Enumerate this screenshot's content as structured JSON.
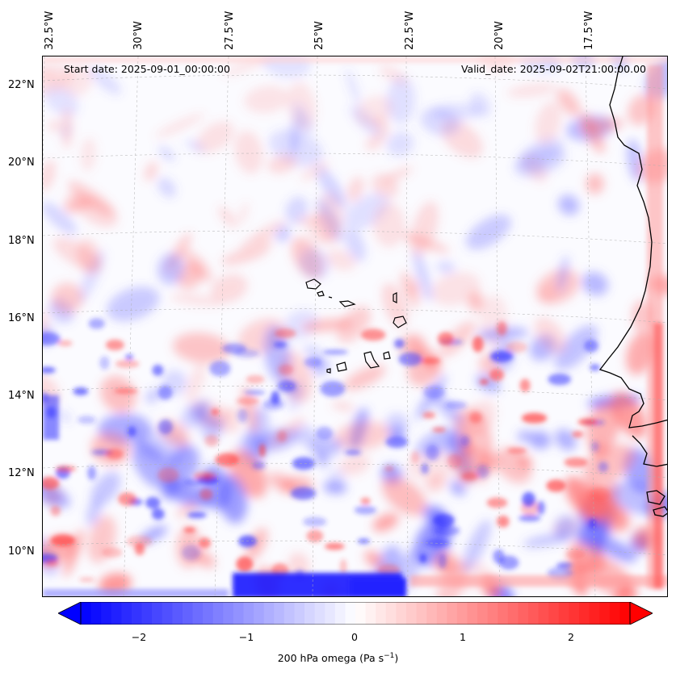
{
  "header": {
    "start_date": "Start date: 2025-09-01_00:00:00",
    "valid_date": "Valid_date: 2025-09-02T21:00:00.00"
  },
  "longitude_labels": [
    "32.5°W",
    "30°W",
    "27.5°W",
    "25°W",
    "22.5°W",
    "20°W",
    "17.5°W"
  ],
  "latitude_labels": [
    "22°N",
    "20°N",
    "18°N",
    "16°N",
    "14°N",
    "12°N",
    "10°N"
  ],
  "colorbar": {
    "label": "200 hPa omega (Pa s",
    "label_sup": "−1",
    "label_end": ")",
    "ticks": [
      "−2",
      "−1",
      "0",
      "1",
      "2"
    ],
    "tick_values": [
      -2,
      -1,
      0,
      1,
      2
    ],
    "range": [
      -2.7,
      2.7
    ],
    "negative_color": "#0000ff",
    "positive_color": "#ff0000",
    "mid_color": "#ffffff"
  },
  "map": {
    "field": "200 hPa omega",
    "extent_lon": [
      -32.8,
      -16.0
    ],
    "extent_lat": [
      8.9,
      22.9
    ],
    "gridlines": true,
    "coastline_color": "#000000"
  }
}
